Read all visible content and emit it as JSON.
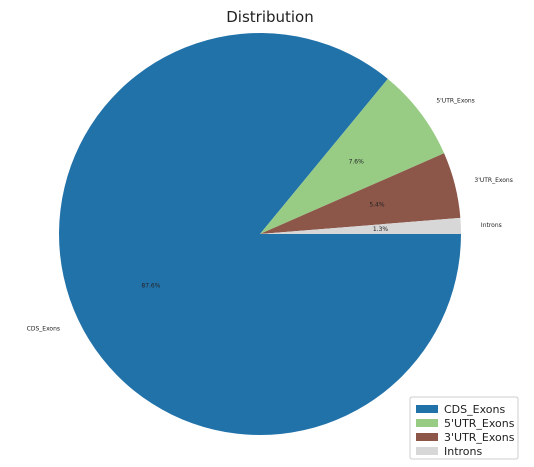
{
  "chart_data": {
    "type": "pie",
    "title": "Distribution",
    "categories": [
      "CDS_Exons",
      "5'UTR_Exons",
      "3'UTR_Exons",
      "Introns"
    ],
    "values": [
      87.6,
      7.6,
      5.4,
      1.3
    ],
    "percent_labels": [
      "87.6%",
      "7.6%",
      "5.4%",
      "1.3%"
    ],
    "colors": [
      "#2272aa",
      "#98cc85",
      "#8c5649",
      "#d7d7d7"
    ],
    "start_angle_deg": 0,
    "direction": "clockwise",
    "legend_position": "bottom-right"
  }
}
